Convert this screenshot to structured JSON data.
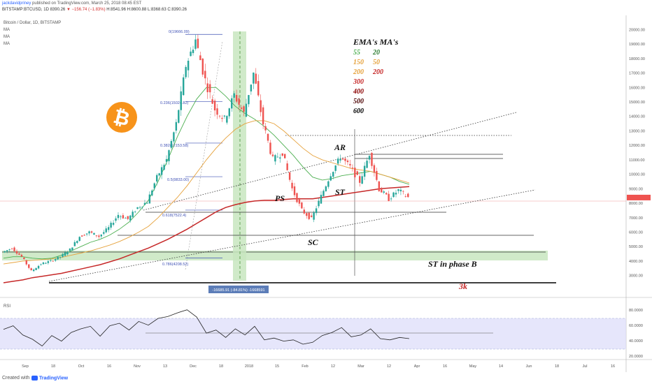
{
  "header": {
    "author": "jackdavidpriney",
    "published": "published on TradingView.com, March 25, 2018 08:45 EST",
    "symbol_line": "BITSTAMP:BTCUSD, 1D 8390.26",
    "change": "▼ −156.74 (−1.83%)",
    "ohlc": "H:8541.96 H:8600.88 L:8368.63 C:8390.26"
  },
  "legend": {
    "symbol": "Bitcoin / Dollar, 1D, BITSTAMP",
    "ma1": "MA",
    "ma2": "MA",
    "ma3": "MA"
  },
  "colors": {
    "up": "#26a69a",
    "down": "#ef5350",
    "ema55": "#4caf50",
    "ema150": "#e6a23c",
    "ema300": "#c62828",
    "rsi_band": "#dcdcfa",
    "zone_green": "#c8e6c0",
    "fib_blue": "#3f51b5",
    "bitcoin": "#f7931a"
  },
  "fib_labels": [
    "0(19666.09)",
    "0.236(15024.82)",
    "0.382(12153.58)",
    "0.5(9833.00)",
    "0.618(7522.4)",
    "0.786(4208.52)"
  ],
  "annotations": {
    "ema_title": "EMA's MA's",
    "ema_col1": [
      "55",
      "150",
      "200",
      "300",
      "400",
      "500",
      "600"
    ],
    "ema_col2": [
      "20",
      "50",
      "200"
    ],
    "ar": "AR",
    "ps": "PS",
    "st": "ST",
    "sc": "SC",
    "st_phase_b": "ST in phase B",
    "three_k": "3k",
    "measure": "-16685.91 (-84.81%) -1668591"
  },
  "rsi": {
    "label": "RSI",
    "ticks": [
      "80.0000",
      "60.0000",
      "40.0000",
      "20.0000"
    ]
  },
  "price_ticks": [
    "20000.00",
    "19000.00",
    "18000.00",
    "17000.00",
    "16000.00",
    "15000.00",
    "14000.00",
    "13000.00",
    "12000.00",
    "11000.00",
    "10000.00",
    "9000.00",
    "8000.00",
    "7000.00",
    "6000.00",
    "5000.00",
    "4000.00",
    "3000.00"
  ],
  "date_ticks": [
    "Sep",
    "18",
    "Oct",
    "16",
    "Nov",
    "13",
    "Dec",
    "18",
    "2018",
    "15",
    "Feb",
    "12",
    "Mar",
    "12",
    "Apr",
    "16",
    "May",
    "14",
    "Jun",
    "18",
    "Jul",
    "16"
  ],
  "footer": {
    "created": "Created with",
    "brand": "TradingView"
  },
  "chart_data": {
    "type": "candlestick",
    "title": "Bitcoin / Dollar, 1D, BITSTAMP",
    "ylim": [
      2500,
      20500
    ],
    "date_ticks": [
      "Sep",
      "18",
      "Oct",
      "16",
      "Nov",
      "13",
      "Dec",
      "18",
      "2018",
      "15",
      "Feb",
      "12",
      "Mar",
      "12",
      "Apr",
      "16",
      "May",
      "14",
      "Jun",
      "18",
      "Jul",
      "16"
    ],
    "close_path": [
      4600,
      4900,
      4300,
      3300,
      3800,
      4000,
      4300,
      4800,
      5700,
      6000,
      5700,
      6300,
      7200,
      6900,
      7700,
      8100,
      9800,
      11000,
      13500,
      17500,
      19300,
      16500,
      14500,
      13800,
      15500,
      14200,
      17000,
      13500,
      11000,
      11500,
      9000,
      7500,
      6900,
      8500,
      10000,
      11200,
      10500,
      9500,
      11400,
      9000,
      8300,
      8900,
      8400
    ],
    "series": [
      {
        "name": "55",
        "values": [
          4200,
          4300,
          4300,
          4200,
          4150,
          4200,
          4400,
          4700,
          5000,
          5300,
          5500,
          5800,
          6200,
          6700,
          7400,
          8200,
          9500,
          11000,
          12600,
          14000,
          15200,
          16000,
          16000,
          15400,
          14700,
          14200,
          13800,
          13300,
          12700,
          12000,
          11300,
          10500,
          9800,
          9600,
          9700,
          9900,
          10000,
          10100,
          10200,
          10000,
          9800,
          9500,
          9300
        ]
      },
      {
        "name": "150",
        "values": [
          3800,
          3900,
          4000,
          4050,
          4100,
          4150,
          4250,
          4400,
          4550,
          4700,
          4900,
          5100,
          5350,
          5650,
          6000,
          6400,
          7000,
          7700,
          8400,
          9200,
          10100,
          11000,
          11800,
          12500,
          13100,
          13500,
          13700,
          13700,
          13500,
          13000,
          12400,
          11800,
          11300,
          11000,
          10800,
          10600,
          10400,
          10300,
          10200,
          10000,
          9800,
          9600,
          9400
        ]
      },
      {
        "name": "300",
        "values": [
          2500,
          2600,
          2700,
          2850,
          2950,
          3050,
          3150,
          3300,
          3450,
          3600,
          3750,
          3950,
          4150,
          4400,
          4650,
          4900,
          5200,
          5500,
          5850,
          6200,
          6600,
          7000,
          7400,
          7700,
          7900,
          8050,
          8150,
          8200,
          8200,
          8250,
          8300,
          8300,
          8300,
          8400,
          8500,
          8600,
          8700,
          8800,
          8900,
          9000,
          9050,
          9100,
          9150
        ]
      }
    ],
    "fib_levels": [
      19666.09,
      15024.82,
      12153.58,
      9833.0,
      7522.4,
      4208.52
    ],
    "rsi_values": [
      57,
      63,
      48,
      41,
      30,
      47,
      38,
      52,
      58,
      62,
      46,
      63,
      67,
      56,
      70,
      64,
      75,
      78,
      84,
      89,
      77,
      51,
      56,
      44,
      58,
      48,
      62,
      40,
      43,
      38,
      40,
      33,
      36,
      47,
      52,
      60,
      45,
      48,
      58,
      42,
      40,
      44,
      42
    ]
  }
}
